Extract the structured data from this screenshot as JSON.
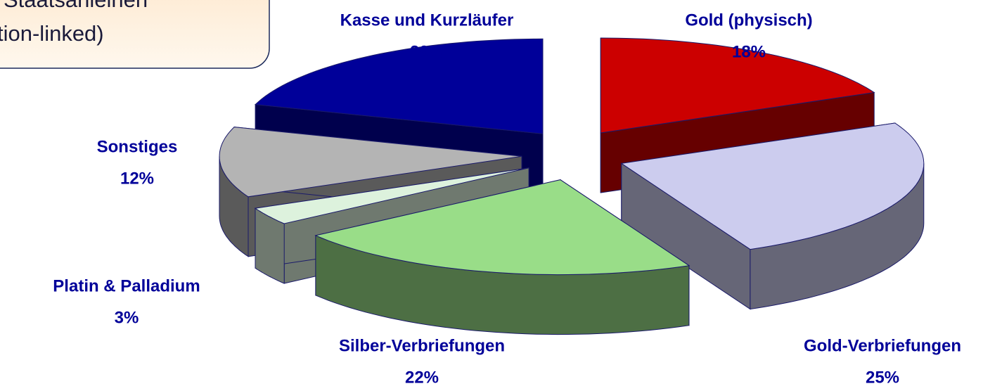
{
  "chart_data": {
    "type": "pie",
    "annotation": [
      "Staatsanleihen",
      "tion-linked)"
    ],
    "categories": [
      "Gold (physisch)",
      "Gold-Verbriefungen",
      "Silber-Verbriefungen",
      "Platin & Palladium",
      "Sonstiges",
      "Kasse und Kurzläufer"
    ],
    "values": [
      18,
      25,
      22,
      3,
      12,
      20
    ],
    "value_labels": [
      "18%",
      "25%",
      "22%",
      "3%",
      "12%",
      "20%"
    ],
    "colors": [
      "#cc0000",
      "#ccccee",
      "#99dd88",
      "#ddf2dd",
      "#b4b4b4",
      "#000099"
    ]
  }
}
